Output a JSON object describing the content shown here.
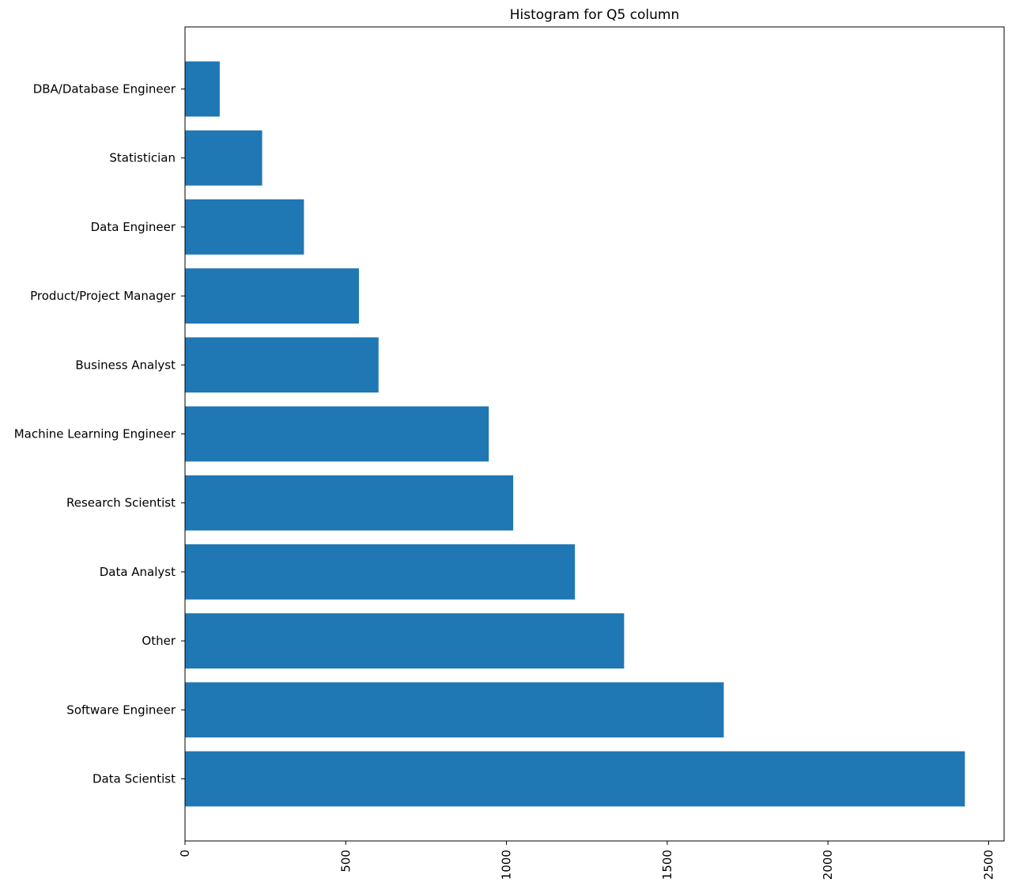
{
  "chart_data": {
    "type": "bar",
    "orientation": "horizontal",
    "title": "Histogram for Q5 column",
    "xlabel": "",
    "ylabel": "",
    "categories": [
      "Data Scientist",
      "Software Engineer",
      "Other",
      "Data Analyst",
      "Research Scientist",
      "Machine Learning Engineer",
      "Business Analyst",
      "Product/Project Manager",
      "Data Engineer",
      "Statistician",
      "DBA/Database Engineer"
    ],
    "values": [
      2426,
      1676,
      1366,
      1213,
      1021,
      945,
      602,
      541,
      370,
      240,
      108
    ],
    "xlim": [
      0,
      2548
    ],
    "xticks": [
      0,
      500,
      1000,
      1500,
      2000,
      2500
    ],
    "xtick_rotation": "vertical",
    "grid": false,
    "legend": "none",
    "bar_color": "#1f77b4"
  }
}
